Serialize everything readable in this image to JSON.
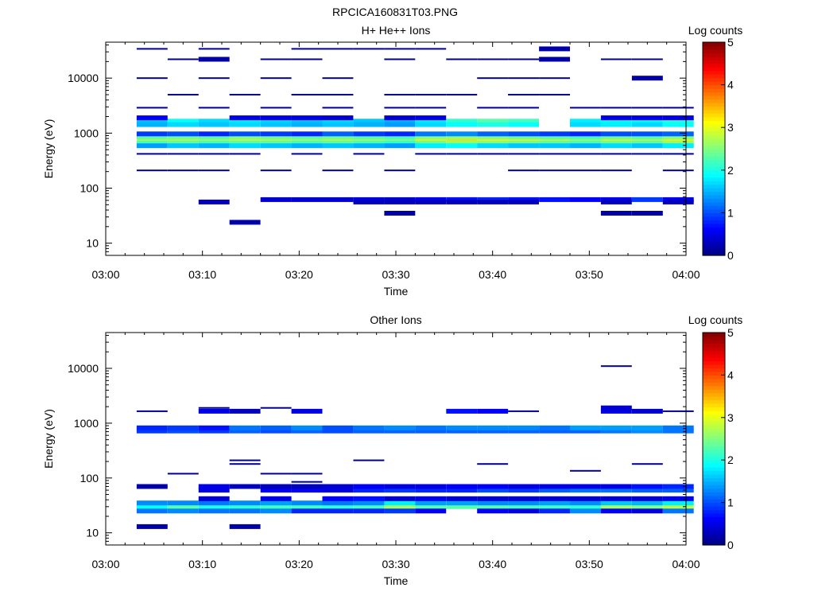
{
  "figure": {
    "title": "RPCICA160831T03.PNG"
  },
  "colorbar": {
    "label": "Log counts",
    "ticks": [
      "0",
      "1",
      "2",
      "3",
      "4",
      "5"
    ],
    "range": [
      0,
      5
    ]
  },
  "chart_data": [
    {
      "type": "heatmap",
      "title": "H+ He++ Ions",
      "xlabel": "Time",
      "ylabel": "Energy (eV)",
      "yscale": "log",
      "xlim": [
        0,
        60
      ],
      "ylim": [
        6,
        45000
      ],
      "xticks": [
        0,
        10,
        20,
        30,
        40,
        50,
        60
      ],
      "xtick_labels": [
        "03:00",
        "03:10",
        "03:20",
        "03:30",
        "03:40",
        "03:50",
        "04:00"
      ],
      "yticks": [
        10,
        100,
        1000,
        10000
      ],
      "ytick_labels": [
        "10",
        "100",
        "1000",
        "10000"
      ],
      "time_bins": [
        3.2,
        6.4,
        9.6,
        12.8,
        16.0,
        19.2,
        22.4,
        25.6,
        28.8,
        32.0,
        35.2,
        38.4,
        41.6,
        44.8,
        48.0,
        51.2,
        54.4,
        57.6,
        60.8
      ],
      "bands": [
        {
          "e": 750,
          "v": [
            2.9,
            2.9,
            2.8,
            2.9,
            2.9,
            2.8,
            2.9,
            2.8,
            2.7,
            3.2,
            3.3,
            3.2,
            3.1,
            3.0,
            2.8,
            3.0,
            2.9,
            3.2
          ]
        },
        {
          "e": 660,
          "v": [
            2.2,
            2.3,
            2.2,
            2.3,
            2.3,
            2.2,
            2.3,
            2.2,
            2.1,
            2.4,
            2.6,
            2.5,
            2.4,
            2.3,
            2.2,
            2.4,
            2.3,
            2.6
          ]
        },
        {
          "e": 850,
          "v": [
            2.3,
            2.4,
            2.3,
            2.5,
            2.4,
            2.3,
            2.4,
            2.3,
            2.2,
            2.5,
            2.6,
            2.5,
            2.4,
            2.3,
            2.2,
            2.4,
            2.3,
            2.5
          ]
        },
        {
          "e": 590,
          "v": [
            1.4,
            1.6,
            1.5,
            1.7,
            1.6,
            1.5,
            1.6,
            1.5,
            1.4,
            1.8,
            1.9,
            1.7,
            1.6,
            1.6,
            1.5,
            1.7,
            1.6,
            1.8
          ]
        },
        {
          "e": 970,
          "v": [
            0.9,
            1.0,
            0.8,
            1.0,
            0.9,
            0.8,
            1.1,
            0.9,
            0.8,
            1.2,
            1.3,
            1.1,
            1.0,
            0.9,
            0.8,
            1.0,
            1.0,
            1.1
          ]
        },
        {
          "e": 1650,
          "v": [
            1.6,
            1.9,
            1.7,
            1.8,
            1.7,
            1.6,
            1.7,
            1.6,
            1.5,
            1.8,
            2.1,
            2.3,
            2.2,
            0.0,
            1.8,
            1.9,
            1.9,
            2.1
          ]
        },
        {
          "e": 1430,
          "v": [
            1.5,
            1.7,
            1.6,
            1.7,
            1.6,
            1.5,
            1.6,
            1.5,
            1.4,
            1.7,
            1.9,
            2.0,
            1.9,
            0.0,
            1.7,
            1.8,
            1.7,
            1.9
          ]
        },
        {
          "e": 1900,
          "v": [
            0.6,
            0.0,
            0.0,
            0.5,
            0.5,
            0.5,
            0.4,
            0.0,
            0.4,
            0.5,
            0.0,
            0.0,
            0.0,
            0.0,
            0.0,
            0.5,
            0.5,
            0.5
          ]
        },
        {
          "e": 62,
          "v": [
            0.0,
            0.0,
            0.0,
            0.0,
            0.4,
            0.4,
            0.4,
            0.5,
            0.4,
            0.6,
            0.7,
            0.8,
            0.7,
            0.7,
            0.6,
            0.6,
            0.9,
            0.6
          ]
        },
        {
          "e": 56,
          "v": [
            0.0,
            0.0,
            0.3,
            0.0,
            0.0,
            0.0,
            0.0,
            0.3,
            0.3,
            0.3,
            0.3,
            0.3,
            0.3,
            0.0,
            0.0,
            0.3,
            0.0,
            0.3
          ]
        },
        {
          "e": 35,
          "v": [
            0.0,
            0.0,
            0.0,
            0.0,
            0.0,
            0.0,
            0.0,
            0.0,
            0.2,
            0.0,
            0.0,
            0.0,
            0.0,
            0.0,
            0.0,
            0.2,
            0.2,
            0.0
          ]
        },
        {
          "e": 24,
          "v": [
            0.0,
            0.0,
            0.0,
            0.2,
            0.0,
            0.0,
            0.0,
            0.0,
            0.0,
            0.0,
            0.0,
            0.0,
            0.0,
            0.0,
            0.0,
            0.0,
            0.0,
            0.0
          ]
        },
        {
          "e": 210,
          "v": [
            0.1,
            0.1,
            0.1,
            0.0,
            0.1,
            0.0,
            0.1,
            0.0,
            0.1,
            0.0,
            0.0,
            0.0,
            0.1,
            0.1,
            0.1,
            0.1,
            0.0,
            0.1
          ]
        },
        {
          "e": 420,
          "v": [
            0.1,
            0.1,
            0.1,
            0.1,
            0.0,
            0.1,
            0.0,
            0.1,
            0.0,
            0.1,
            0.1,
            0.1,
            0.1,
            0.1,
            0.1,
            0.1,
            0.1,
            0.1
          ]
        },
        {
          "e": 2900,
          "v": [
            0.1,
            0.0,
            0.1,
            0.0,
            0.1,
            0.0,
            0.1,
            0.0,
            0.1,
            0.1,
            0.0,
            0.1,
            0.1,
            0.0,
            0.1,
            0.1,
            0.1,
            0.1
          ]
        },
        {
          "e": 5000,
          "v": [
            0.0,
            0.1,
            0.0,
            0.1,
            0.0,
            0.1,
            0.1,
            0.0,
            0.1,
            0.1,
            0.1,
            0.0,
            0.1,
            0.1,
            0.0,
            0.0,
            0.0,
            0.0
          ]
        },
        {
          "e": 10000,
          "v": [
            0.1,
            0.0,
            0.1,
            0.0,
            0.1,
            0.0,
            0.1,
            0.0,
            0.0,
            0.0,
            0.0,
            0.1,
            0.1,
            0.1,
            0.0,
            0.0,
            0.2,
            0.0
          ]
        },
        {
          "e": 22000,
          "v": [
            0.0,
            0.1,
            0.2,
            0.0,
            0.1,
            0.1,
            0.0,
            0.0,
            0.1,
            0.0,
            0.1,
            0.1,
            0.1,
            0.2,
            0.0,
            0.1,
            0.1,
            0.0
          ]
        },
        {
          "e": 34000,
          "v": [
            0.1,
            0.0,
            0.1,
            0.0,
            0.0,
            0.1,
            0.1,
            0.1,
            0.1,
            0.1,
            0.0,
            0.0,
            0.0,
            0.2,
            0.0,
            0.0,
            0.0,
            0.0
          ]
        }
      ]
    },
    {
      "type": "heatmap",
      "title": "Other Ions",
      "xlabel": "Time",
      "ylabel": "Energy (eV)",
      "yscale": "log",
      "xlim": [
        0,
        60
      ],
      "ylim": [
        6,
        45000
      ],
      "xticks": [
        0,
        10,
        20,
        30,
        40,
        50,
        60
      ],
      "xtick_labels": [
        "03:00",
        "03:10",
        "03:20",
        "03:30",
        "03:40",
        "03:50",
        "04:00"
      ],
      "yticks": [
        10,
        100,
        1000,
        10000
      ],
      "ytick_labels": [
        "10",
        "100",
        "1000",
        "10000"
      ],
      "time_bins": [
        3.2,
        6.4,
        9.6,
        12.8,
        16.0,
        19.2,
        22.4,
        25.6,
        28.8,
        32.0,
        35.2,
        38.4,
        41.6,
        44.8,
        48.0,
        51.2,
        54.4,
        57.6,
        60.8
      ],
      "bands": [
        {
          "e": 30,
          "v": [
            1.9,
            2.3,
            2.0,
            2.1,
            2.2,
            2.2,
            2.1,
            2.2,
            2.7,
            2.3,
            2.3,
            2.3,
            2.2,
            2.2,
            2.1,
            2.7,
            2.5,
            2.8
          ]
        },
        {
          "e": 35,
          "v": [
            1.3,
            1.3,
            1.2,
            1.3,
            1.4,
            1.3,
            1.2,
            1.3,
            1.8,
            1.4,
            1.4,
            1.3,
            1.3,
            1.4,
            1.3,
            1.6,
            1.5,
            1.8
          ]
        },
        {
          "e": 25,
          "v": [
            1.2,
            1.3,
            1.2,
            1.2,
            1.3,
            0.8,
            0.8,
            0.8,
            0.9,
            0.6,
            0.0,
            0.6,
            0.5,
            0.8,
            1.3,
            0.6,
            0.5,
            1.2
          ]
        },
        {
          "e": 42,
          "v": [
            0.0,
            0.0,
            0.4,
            0.0,
            0.5,
            0.0,
            0.6,
            0.7,
            0.4,
            0.5,
            0.4,
            0.4,
            0.4,
            0.4,
            0.4,
            0.4,
            0.4,
            0.5
          ]
        },
        {
          "e": 60,
          "v": [
            0.0,
            0.0,
            0.5,
            0.0,
            0.6,
            0.6,
            0.5,
            0.8,
            0.9,
            0.8,
            0.8,
            1.0,
            0.9,
            1.1,
            1.2,
            1.2,
            1.1,
            1.1
          ]
        },
        {
          "e": 70,
          "v": [
            0.2,
            0.0,
            0.5,
            0.3,
            0.3,
            0.3,
            0.4,
            0.6,
            0.5,
            0.5,
            0.6,
            0.6,
            0.5,
            0.5,
            0.5,
            0.5,
            0.7,
            0.8
          ]
        },
        {
          "e": 13,
          "v": [
            0.2,
            0.0,
            0.0,
            0.2,
            0.0,
            0.0,
            0.0,
            0.0,
            0.0,
            0.0,
            0.0,
            0.0,
            0.0,
            0.0,
            0.0,
            0.0,
            0.0,
            0.0
          ]
        },
        {
          "e": 720,
          "v": [
            0.9,
            1.0,
            0.9,
            1.1,
            1.0,
            1.1,
            1.0,
            1.1,
            1.1,
            1.1,
            1.1,
            1.1,
            1.1,
            1.1,
            1.1,
            1.2,
            1.3,
            1.2
          ]
        },
        {
          "e": 820,
          "v": [
            0.8,
            0.9,
            0.7,
            1.2,
            1.1,
            1.3,
            1.0,
            1.2,
            1.3,
            1.2,
            1.3,
            1.3,
            1.3,
            1.2,
            1.4,
            1.4,
            1.4,
            1.2
          ]
        },
        {
          "e": 1650,
          "v": [
            0.1,
            0.0,
            0.5,
            0.3,
            0.0,
            0.5,
            0.0,
            0.0,
            0.0,
            0.0,
            0.7,
            0.6,
            0.1,
            0.0,
            0.0,
            0.5,
            0.4,
            0.1
          ]
        },
        {
          "e": 1900,
          "v": [
            0.0,
            0.0,
            0.1,
            0.0,
            0.1,
            0.0,
            0.0,
            0.0,
            0.0,
            0.0,
            0.0,
            0.0,
            0.0,
            0.0,
            0.0,
            0.4,
            0.0,
            0.0
          ]
        },
        {
          "e": 11000,
          "v": [
            0.0,
            0.0,
            0.0,
            0.0,
            0.0,
            0.0,
            0.0,
            0.0,
            0.0,
            0.0,
            0.0,
            0.0,
            0.0,
            0.0,
            0.0,
            0.1,
            0.0,
            0.0
          ]
        },
        {
          "e": 120,
          "v": [
            0.0,
            0.1,
            0.0,
            0.0,
            0.1,
            0.1,
            0.0,
            0.0,
            0.0,
            0.0,
            0.0,
            0.0,
            0.0,
            0.0,
            0.0,
            0.0,
            0.0,
            0.0
          ]
        },
        {
          "e": 180,
          "v": [
            0.0,
            0.0,
            0.0,
            0.1,
            0.0,
            0.0,
            0.0,
            0.0,
            0.0,
            0.0,
            0.0,
            0.1,
            0.0,
            0.0,
            0.0,
            0.0,
            0.1,
            0.0
          ]
        },
        {
          "e": 210,
          "v": [
            0.0,
            0.0,
            0.0,
            0.1,
            0.0,
            0.0,
            0.0,
            0.1,
            0.0,
            0.0,
            0.0,
            0.0,
            0.0,
            0.0,
            0.0,
            0.0,
            0.0,
            0.0
          ]
        },
        {
          "e": 135,
          "v": [
            0.0,
            0.0,
            0.0,
            0.0,
            0.0,
            0.0,
            0.0,
            0.0,
            0.0,
            0.0,
            0.0,
            0.0,
            0.0,
            0.0,
            0.1,
            0.0,
            0.0,
            0.0
          ]
        },
        {
          "e": 85,
          "v": [
            0.0,
            0.0,
            0.0,
            0.0,
            0.0,
            0.1,
            0.0,
            0.0,
            0.0,
            0.0,
            0.0,
            0.0,
            0.0,
            0.0,
            0.0,
            0.0,
            0.0,
            0.0
          ]
        }
      ]
    }
  ]
}
